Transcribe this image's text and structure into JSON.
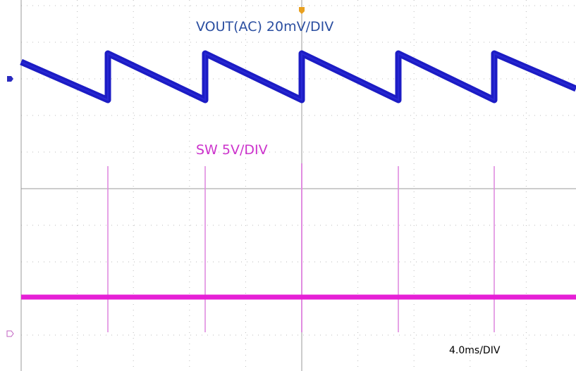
{
  "annotations": {
    "vout": "VOUT(AC) 20mV/DIV",
    "sw": "SW 5V/DIV",
    "time": "4.0ms/DIV"
  }
}
